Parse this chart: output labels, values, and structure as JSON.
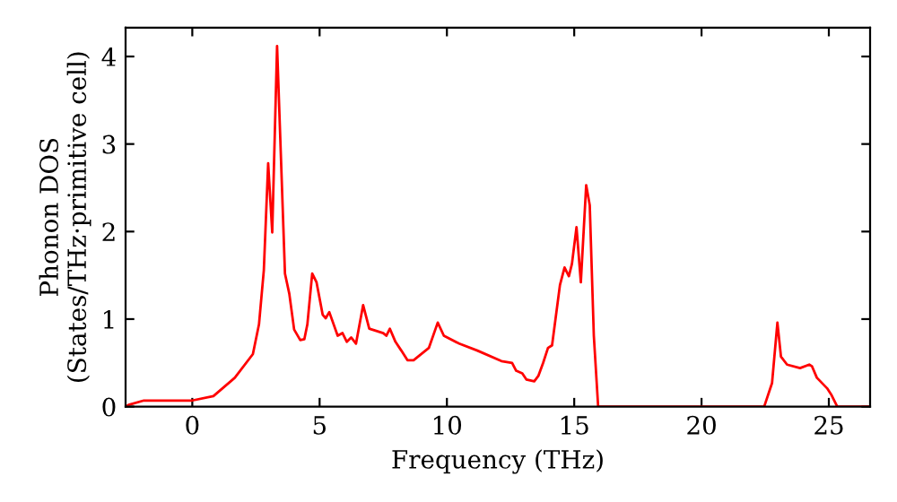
{
  "chart_data": {
    "type": "line",
    "xlabel": "Frequency (THz)",
    "ylabel": "Phonon DOS\n(States/THz·primitive cell)",
    "series": [
      {
        "color": "#ff0000",
        "x": [
          -2.62,
          -2.5,
          -1.9,
          0,
          0.83,
          1.67,
          2.38,
          2.62,
          2.81,
          2.98,
          3.14,
          3.33,
          3.64,
          3.81,
          4.0,
          4.24,
          4.4,
          4.52,
          4.71,
          4.88,
          5.12,
          5.24,
          5.38,
          5.71,
          5.9,
          6.07,
          6.24,
          6.43,
          6.71,
          6.95,
          7.5,
          7.62,
          7.76,
          7.98,
          8.21,
          8.45,
          8.69,
          9.29,
          9.64,
          9.88,
          10.48,
          11.2,
          12.14,
          12.56,
          12.72,
          12.96,
          13.12,
          13.43,
          13.59,
          13.78,
          13.97,
          14.13,
          14.44,
          14.62,
          14.79,
          14.91,
          15.09,
          15.26,
          15.47,
          15.61,
          15.77,
          15.94,
          22.46,
          22.77,
          22.98,
          23.12,
          23.36,
          23.87,
          24.23,
          24.34,
          24.53,
          24.93,
          25.09,
          25.33,
          26.62
        ],
        "values": [
          0,
          0.02,
          0.07,
          0.07,
          0.12,
          0.33,
          0.6,
          0.94,
          1.56,
          2.78,
          1.99,
          4.12,
          1.52,
          1.29,
          0.88,
          0.76,
          0.77,
          0.94,
          1.52,
          1.42,
          1.05,
          1.01,
          1.08,
          0.81,
          0.84,
          0.74,
          0.79,
          0.72,
          1.16,
          0.89,
          0.84,
          0.81,
          0.89,
          0.74,
          0.64,
          0.53,
          0.53,
          0.67,
          0.96,
          0.81,
          0.72,
          0.64,
          0.52,
          0.5,
          0.41,
          0.38,
          0.31,
          0.29,
          0.35,
          0.5,
          0.67,
          0.7,
          1.39,
          1.59,
          1.49,
          1.63,
          2.05,
          1.42,
          2.53,
          2.3,
          0.81,
          0,
          0,
          0.27,
          0.96,
          0.57,
          0.48,
          0.44,
          0.48,
          0.46,
          0.33,
          0.21,
          0.14,
          0,
          0
        ]
      }
    ],
    "xlim": [
      -2.62,
      26.62
    ],
    "ylim": [
      0,
      4.33
    ],
    "xticks": [
      0,
      5,
      10,
      15,
      20,
      25
    ],
    "yticks": [
      0,
      1,
      2,
      3,
      4
    ],
    "grid": false,
    "legend": false,
    "marker": "none",
    "line_style": "solid"
  }
}
